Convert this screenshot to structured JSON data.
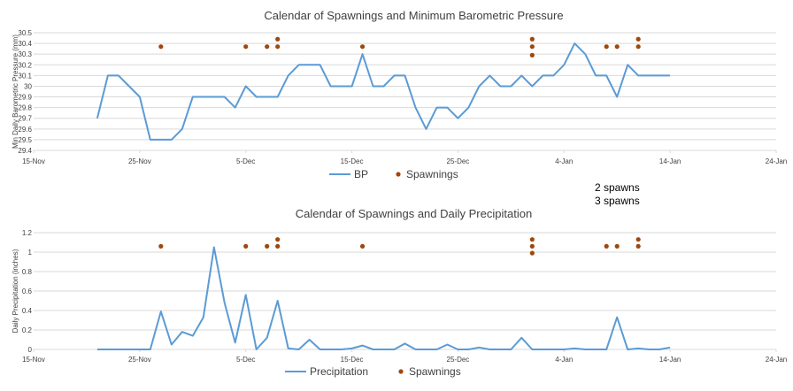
{
  "chart_data": [
    {
      "type": "line",
      "title": "Calendar of Spawnings and Minimum Barometric Pressure",
      "ylabel": "Min Daily Barometric Pressure (mm)",
      "xlabel": "",
      "x_ticks": [
        "15-Nov",
        "25-Nov",
        "5-Dec",
        "15-Dec",
        "25-Dec",
        "4-Jan",
        "14-Jan",
        "24-Jan"
      ],
      "y_ticks": [
        "29.4",
        "29.5",
        "29.6",
        "29.7",
        "29.8",
        "29.9",
        "30",
        "30.1",
        "30.2",
        "30.3",
        "30.4",
        "30.5"
      ],
      "xlim": [
        "2013-11-15",
        "2014-01-24"
      ],
      "ylim": [
        29.4,
        30.5
      ],
      "grid": true,
      "legend_position": "bottom",
      "series": [
        {
          "name": "BP",
          "color": "#5b9bd5",
          "x": [
            "2013-11-21",
            "2013-11-22",
            "2013-11-23",
            "2013-11-24",
            "2013-11-25",
            "2013-11-26",
            "2013-11-27",
            "2013-11-28",
            "2013-11-29",
            "2013-11-30",
            "2013-12-01",
            "2013-12-02",
            "2013-12-03",
            "2013-12-04",
            "2013-12-05",
            "2013-12-06",
            "2013-12-07",
            "2013-12-08",
            "2013-12-09",
            "2013-12-10",
            "2013-12-11",
            "2013-12-12",
            "2013-12-13",
            "2013-12-14",
            "2013-12-15",
            "2013-12-16",
            "2013-12-17",
            "2013-12-18",
            "2013-12-19",
            "2013-12-20",
            "2013-12-21",
            "2013-12-22",
            "2013-12-23",
            "2013-12-24",
            "2013-12-25",
            "2013-12-26",
            "2013-12-27",
            "2013-12-28",
            "2013-12-29",
            "2013-12-30",
            "2013-12-31",
            "2014-01-01",
            "2014-01-02",
            "2014-01-03",
            "2014-01-04",
            "2014-01-05",
            "2014-01-06",
            "2014-01-07",
            "2014-01-08",
            "2014-01-09",
            "2014-01-10",
            "2014-01-11",
            "2014-01-12",
            "2014-01-13",
            "2014-01-14"
          ],
          "values": [
            29.7,
            30.1,
            30.1,
            30.0,
            29.9,
            29.5,
            29.5,
            29.5,
            29.6,
            29.9,
            29.9,
            29.9,
            29.9,
            29.8,
            30.0,
            29.9,
            29.9,
            29.9,
            30.1,
            30.2,
            30.2,
            30.2,
            30.0,
            30.0,
            30.0,
            30.3,
            30.0,
            30.0,
            30.1,
            30.1,
            29.8,
            29.6,
            29.8,
            29.8,
            29.7,
            29.8,
            30.0,
            30.1,
            30.0,
            30.0,
            30.1,
            30.0,
            30.1,
            30.1,
            30.2,
            30.4,
            30.3,
            30.1,
            30.1,
            29.9,
            30.2,
            30.1,
            30.1,
            30.1,
            30.1
          ]
        },
        {
          "name": "Spawnings",
          "type": "scatter",
          "color": "#9e480e",
          "x": [
            "2013-11-27",
            "2013-12-05",
            "2013-12-07",
            "2013-12-08",
            "2013-12-08",
            "2013-12-16",
            "2014-01-01",
            "2014-01-01",
            "2014-01-01",
            "2014-01-08",
            "2014-01-09",
            "2014-01-11",
            "2014-01-11"
          ],
          "values": [
            30.37,
            30.37,
            30.37,
            30.37,
            30.44,
            30.37,
            30.29,
            30.37,
            30.44,
            30.37,
            30.37,
            30.37,
            30.44
          ]
        }
      ]
    },
    {
      "type": "line",
      "title": "Calendar of Spawnings and Daily Precipitation",
      "ylabel": "Daily Precipitation (inches)",
      "xlabel": "",
      "x_ticks": [
        "15-Nov",
        "25-Nov",
        "5-Dec",
        "15-Dec",
        "25-Dec",
        "4-Jan",
        "14-Jan",
        "24-Jan"
      ],
      "y_ticks": [
        "0",
        "0.2",
        "0.4",
        "0.6",
        "0.8",
        "1",
        "1.2"
      ],
      "xlim": [
        "2013-11-15",
        "2014-01-24"
      ],
      "ylim": [
        0,
        1.2
      ],
      "grid": true,
      "legend_position": "bottom",
      "series": [
        {
          "name": "Precipitation",
          "color": "#5b9bd5",
          "x": [
            "2013-11-21",
            "2013-11-22",
            "2013-11-23",
            "2013-11-24",
            "2013-11-25",
            "2013-11-26",
            "2013-11-27",
            "2013-11-28",
            "2013-11-29",
            "2013-11-30",
            "2013-12-01",
            "2013-12-02",
            "2013-12-03",
            "2013-12-04",
            "2013-12-05",
            "2013-12-06",
            "2013-12-07",
            "2013-12-08",
            "2013-12-09",
            "2013-12-10",
            "2013-12-11",
            "2013-12-12",
            "2013-12-13",
            "2013-12-14",
            "2013-12-15",
            "2013-12-16",
            "2013-12-17",
            "2013-12-18",
            "2013-12-19",
            "2013-12-20",
            "2013-12-21",
            "2013-12-22",
            "2013-12-23",
            "2013-12-24",
            "2013-12-25",
            "2013-12-26",
            "2013-12-27",
            "2013-12-28",
            "2013-12-29",
            "2013-12-30",
            "2013-12-31",
            "2014-01-01",
            "2014-01-02",
            "2014-01-03",
            "2014-01-04",
            "2014-01-05",
            "2014-01-06",
            "2014-01-07",
            "2014-01-08",
            "2014-01-09",
            "2014-01-10",
            "2014-01-11",
            "2014-01-12",
            "2014-01-13",
            "2014-01-14"
          ],
          "values": [
            0,
            0,
            0,
            0,
            0,
            0,
            0.39,
            0.05,
            0.18,
            0.14,
            0.33,
            1.05,
            0.48,
            0.07,
            0.56,
            0,
            0.12,
            0.5,
            0.01,
            0,
            0.1,
            0,
            0,
            0,
            0.01,
            0.04,
            0,
            0,
            0,
            0.06,
            0,
            0,
            0,
            0.05,
            0,
            0,
            0.02,
            0,
            0,
            0,
            0.12,
            0,
            0,
            0,
            0,
            0.01,
            0,
            0,
            0,
            0.33,
            0,
            0.01,
            0,
            0,
            0.02
          ]
        },
        {
          "name": "Spawnings",
          "type": "scatter",
          "color": "#9e480e",
          "x": [
            "2013-11-27",
            "2013-12-05",
            "2013-12-07",
            "2013-12-08",
            "2013-12-08",
            "2013-12-16",
            "2014-01-01",
            "2014-01-01",
            "2014-01-01",
            "2014-01-08",
            "2014-01-09",
            "2014-01-11",
            "2014-01-11"
          ],
          "values": [
            1.06,
            1.06,
            1.06,
            1.06,
            1.13,
            1.06,
            0.99,
            1.06,
            1.13,
            1.06,
            1.06,
            1.06,
            1.13
          ]
        }
      ]
    }
  ],
  "annotations": [
    "2 spawns",
    "3 spawns"
  ]
}
